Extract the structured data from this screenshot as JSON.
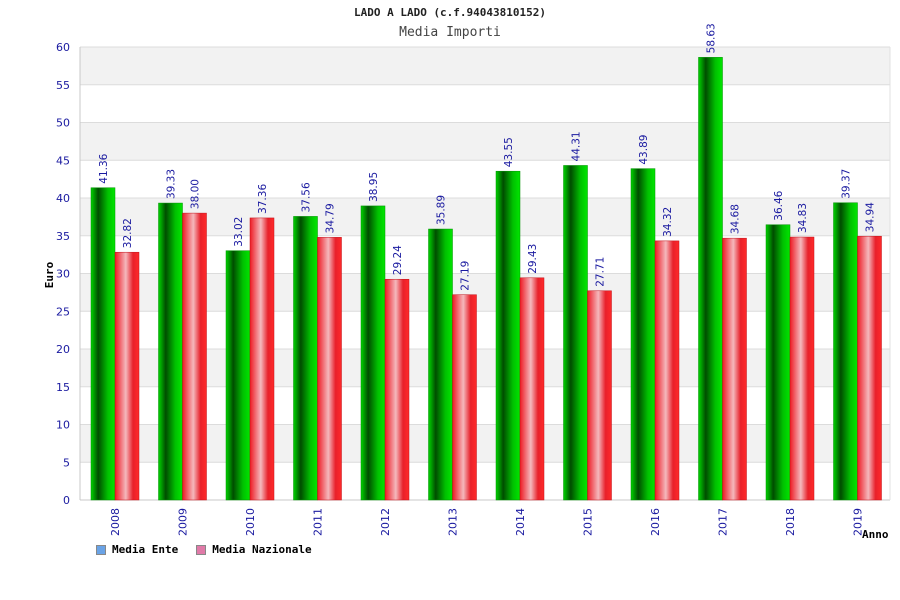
{
  "chart_data": {
    "type": "bar",
    "title": "LADO A LADO (c.f.94043810152)",
    "subtitle": "Media Importi",
    "xlabel": "Anno",
    "ylabel": "Euro",
    "ylim": [
      0,
      60
    ],
    "yticks": [
      "0",
      "5",
      "10",
      "15",
      "20",
      "25",
      "30",
      "35",
      "40",
      "45",
      "50",
      "55",
      "60"
    ],
    "grid": true,
    "legend_position": "bottom-left",
    "categories": [
      "2008",
      "2009",
      "2010",
      "2011",
      "2012",
      "2013",
      "2014",
      "2015",
      "2016",
      "2017",
      "2018",
      "2019"
    ],
    "series": [
      {
        "name": "Media Ente",
        "color": "#00c000",
        "legend_color": "#6aa3e6",
        "values": [
          41.36,
          39.33,
          33.02,
          37.56,
          38.95,
          35.89,
          43.55,
          44.31,
          43.89,
          58.63,
          36.46,
          39.37
        ],
        "labels": [
          "41.36",
          "39.33",
          "33.02",
          "37.56",
          "38.95",
          "35.89",
          "43.55",
          "44.31",
          "43.89",
          "58.63",
          "36.46",
          "39.37"
        ]
      },
      {
        "name": "Media Nazionale",
        "color": "#e8202a",
        "legend_color": "#e07aa8",
        "values": [
          32.82,
          38.0,
          37.36,
          34.79,
          29.24,
          27.19,
          29.43,
          27.71,
          34.32,
          34.68,
          34.83,
          34.94
        ],
        "labels": [
          "32.82",
          "38.00",
          "37.36",
          "34.79",
          "29.24",
          "27.19",
          "29.43",
          "27.71",
          "34.32",
          "34.68",
          "34.83",
          "34.94"
        ]
      }
    ]
  }
}
